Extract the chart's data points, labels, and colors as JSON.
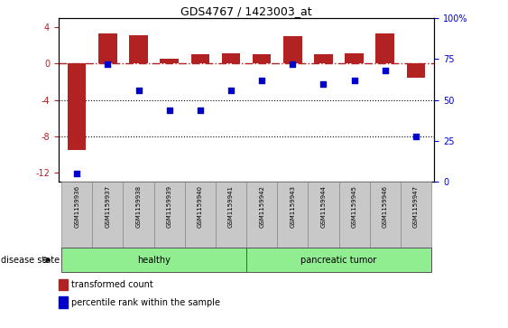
{
  "title": "GDS4767 / 1423003_at",
  "samples": [
    "GSM1159936",
    "GSM1159937",
    "GSM1159938",
    "GSM1159939",
    "GSM1159940",
    "GSM1159941",
    "GSM1159942",
    "GSM1159943",
    "GSM1159944",
    "GSM1159945",
    "GSM1159946",
    "GSM1159947"
  ],
  "bar_values": [
    -9.5,
    3.3,
    3.1,
    0.5,
    1.0,
    1.1,
    1.0,
    3.0,
    1.0,
    1.1,
    3.3,
    -1.5
  ],
  "dot_values": [
    5,
    72,
    56,
    44,
    44,
    56,
    62,
    72,
    60,
    62,
    68,
    28
  ],
  "ylim_left": [
    -13,
    5
  ],
  "ylim_right": [
    0,
    100
  ],
  "yticks_left": [
    4,
    0,
    -4,
    -8,
    -12
  ],
  "yticks_right": [
    100,
    75,
    50,
    25,
    0
  ],
  "bar_color": "#B22222",
  "dot_color": "#0000CC",
  "hline_y": 0,
  "dotted_lines": [
    -4,
    -8
  ],
  "xlabel_disease": "disease state",
  "legend_items": [
    {
      "label": "transformed count",
      "color": "#B22222"
    },
    {
      "label": "percentile rank within the sample",
      "color": "#0000CC"
    }
  ],
  "background_color": "#FFFFFF",
  "tick_area_color": "#C8C8C8",
  "group_healthy_color": "#90EE90",
  "group_tumor_color": "#90EE90"
}
